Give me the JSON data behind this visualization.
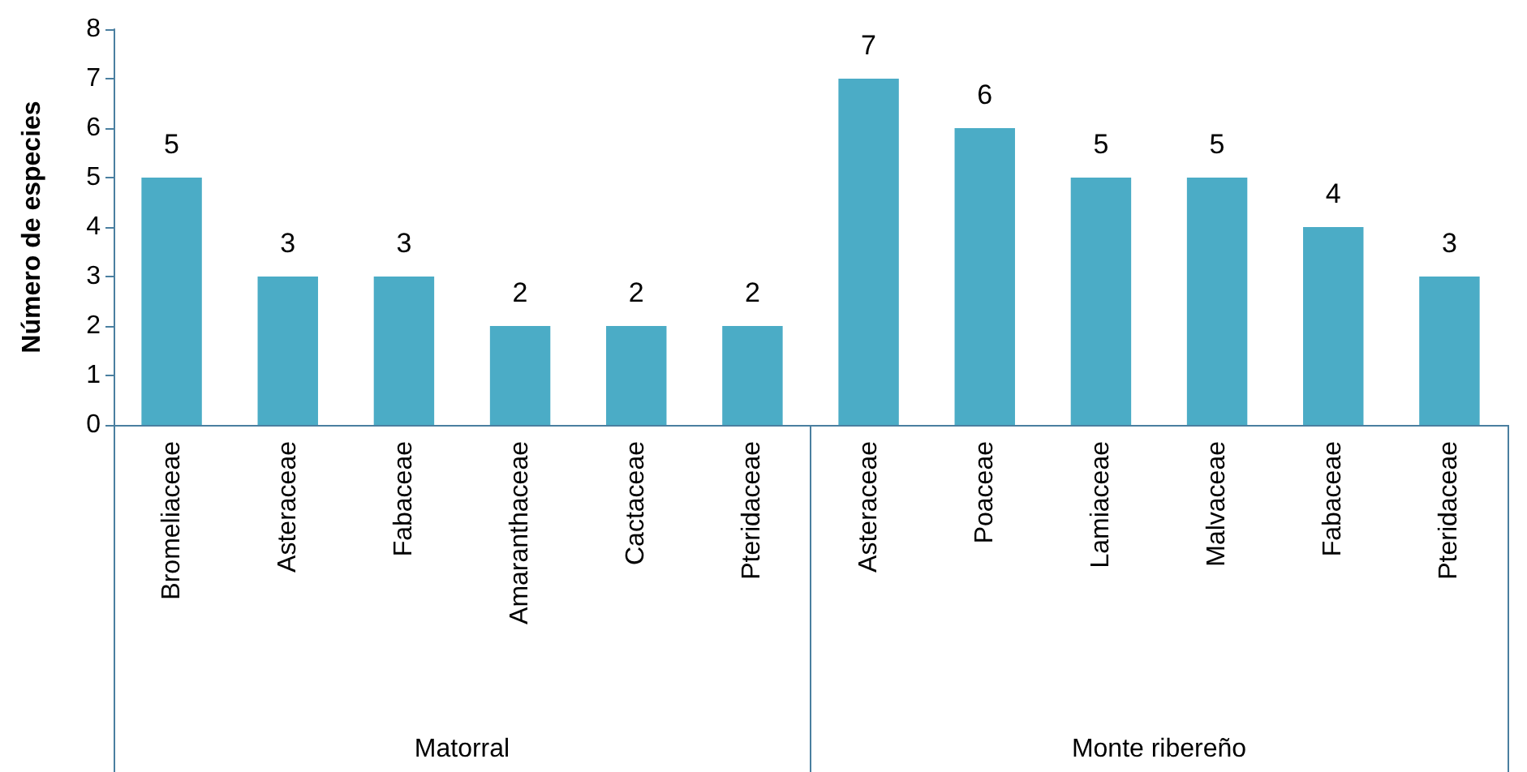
{
  "chart_data": {
    "type": "bar",
    "ylabel": "Número de especies",
    "categories": [
      "Bromeliaceae",
      "Asteraceae",
      "Fabaceae",
      "Amaranthaceae",
      "Cactaceae",
      "Pteridaceae",
      "Asteraceae",
      "Poaceae",
      "Lamiaceae",
      "Malvaceae",
      "Fabaceae",
      "Pteridaceae"
    ],
    "values": [
      5,
      3,
      3,
      2,
      2,
      2,
      7,
      6,
      5,
      5,
      4,
      3
    ],
    "color": "#4bacc6",
    "ylim": [
      0,
      8
    ],
    "yticks": [
      0,
      1,
      2,
      3,
      4,
      5,
      6,
      7,
      8
    ],
    "grid": false,
    "data_labels": true,
    "annotations": [
      "Matorral",
      "Monte ribereño"
    ]
  }
}
